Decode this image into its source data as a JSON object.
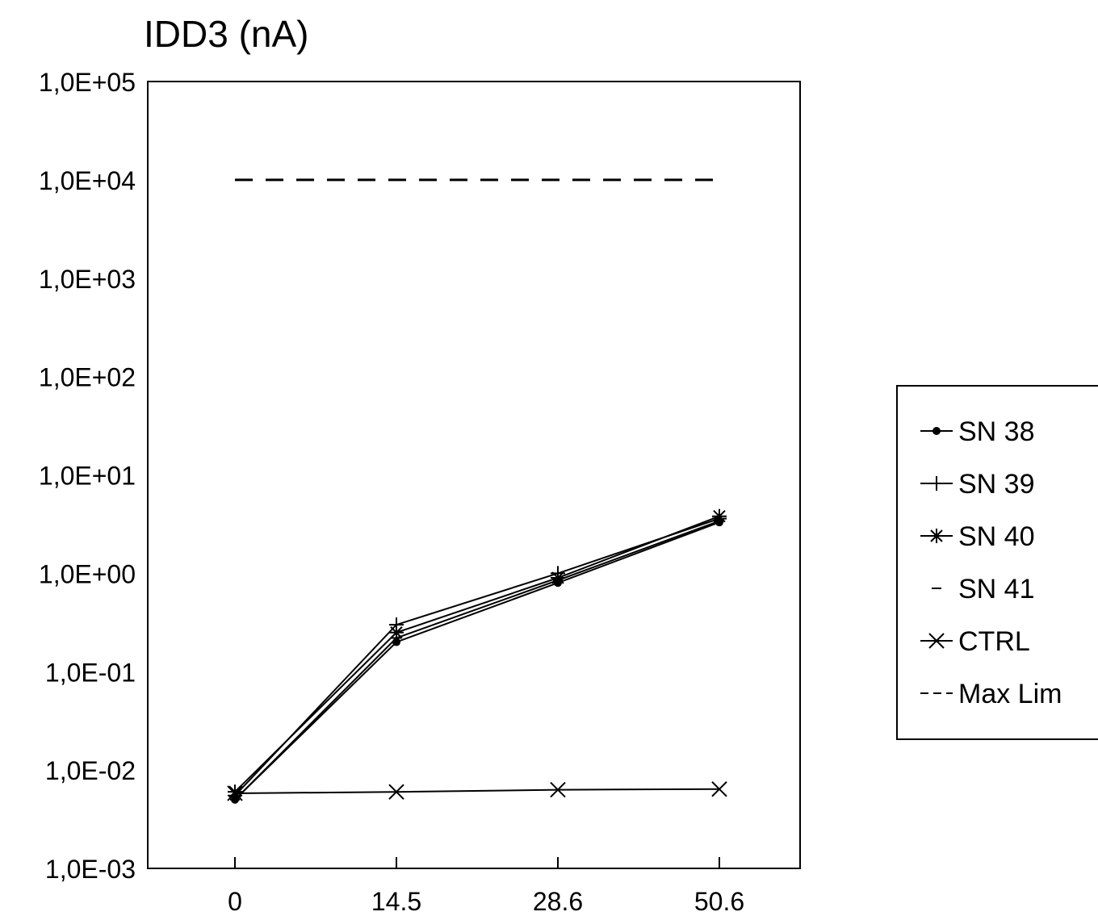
{
  "chart_data": {
    "type": "line",
    "title": "IDD3 (nA)",
    "xlabel": "",
    "ylabel": "",
    "y_scale": "log",
    "ylim": [
      0.001,
      100000
    ],
    "grid": false,
    "legend_position": "right",
    "categories": [
      "0",
      "14.5",
      "28.6",
      "50.6"
    ],
    "y_tick_labels": [
      "1,0E-03",
      "1,0E-02",
      "1,0E-01",
      "1,0E+00",
      "1,0E+01",
      "1,0E+02",
      "1,0E+03",
      "1,0E+04",
      "1,0E+05"
    ],
    "series": [
      {
        "name": "SN 38",
        "marker": "dot",
        "dash": "solid",
        "values": [
          0.005,
          0.2,
          0.8,
          3.3
        ]
      },
      {
        "name": "SN 39",
        "marker": "plus",
        "dash": "solid",
        "values": [
          0.0055,
          0.3,
          1.0,
          3.6
        ]
      },
      {
        "name": "SN 40",
        "marker": "asterisk",
        "dash": "solid",
        "values": [
          0.006,
          0.25,
          0.9,
          3.8
        ]
      },
      {
        "name": "SN 41",
        "marker": "tick",
        "dash": "solid",
        "values": [
          0.005,
          0.22,
          0.85,
          3.4
        ]
      },
      {
        "name": "CTRL",
        "marker": "x",
        "dash": "solid",
        "values": [
          0.0058,
          0.006,
          0.0063,
          0.0064
        ]
      },
      {
        "name": "Max Lim",
        "marker": "none",
        "dash": "dashed",
        "values": [
          10000,
          10000,
          10000,
          10000
        ]
      }
    ]
  }
}
